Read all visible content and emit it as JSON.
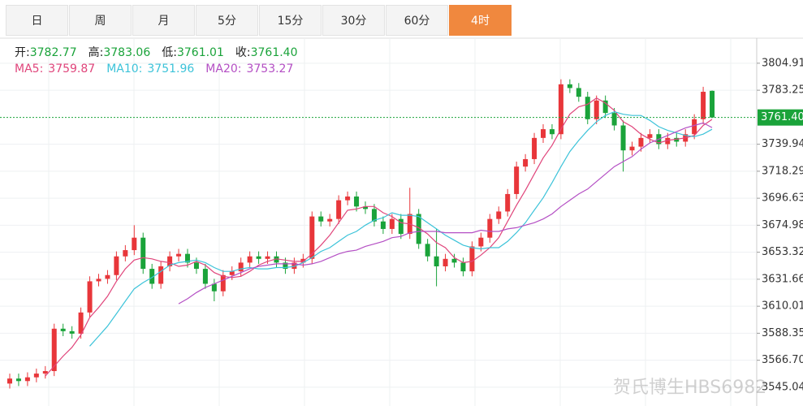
{
  "tabs": {
    "items": [
      "日",
      "周",
      "月",
      "5分",
      "15分",
      "30分",
      "60分",
      "4时"
    ],
    "active": 7
  },
  "header": {
    "ohlc": [
      {
        "label": "开:",
        "text": "3782.77"
      },
      {
        "label": "高:",
        "text": "3783.06"
      },
      {
        "label": "低:",
        "text": "3761.01"
      },
      {
        "label": "收:",
        "text": "3761.40"
      }
    ]
  },
  "watermark": "贺氏博生HBS6982",
  "chart_data": {
    "type": "candlestick",
    "up_color": "#e8363a",
    "down_color": "#1aa33a",
    "ylim": [
      3530,
      3825
    ],
    "yticks": [
      3804.91,
      3783.25,
      3739.94,
      3718.29,
      3696.63,
      3674.98,
      3653.32,
      3631.66,
      3610.01,
      3588.35,
      {
        "value": 3566.7,
        "label": "3566.70"
      },
      3545.04
    ],
    "grid": true,
    "last_price": {
      "value": 3761.4,
      "label": "3761.40",
      "color": "#1aa33a"
    },
    "open": [
      3548,
      3552,
      3550,
      3553,
      3556,
      3558,
      3592,
      3590,
      3588,
      3605,
      3630,
      3632,
      3635,
      3650,
      3655,
      3665,
      3640,
      3628,
      3642,
      3650,
      3652,
      3645,
      3640,
      3628,
      3622,
      3635,
      3638,
      3645,
      3650,
      3648,
      3650,
      3645,
      3640,
      3645,
      3648,
      3682,
      3678,
      3680,
      3695,
      3698,
      3690,
      3688,
      3678,
      3672,
      3680,
      3668,
      3684,
      3660,
      3650,
      3642,
      3648,
      3645,
      3638,
      3658,
      3665,
      3680,
      3686,
      3700,
      3722,
      3728,
      3745,
      3752,
      3748,
      3788,
      3785,
      3778,
      3760,
      3775,
      3765,
      3755,
      3735,
      3738,
      3745,
      3748,
      3740,
      3745,
      3742,
      3748,
      3760,
      3782.77
    ],
    "high": [
      3556,
      3556,
      3557,
      3560,
      3562,
      3596,
      3596,
      3594,
      3609,
      3634,
      3636,
      3639,
      3654,
      3659,
      3675,
      3669,
      3644,
      3646,
      3654,
      3656,
      3656,
      3649,
      3644,
      3632,
      3639,
      3642,
      3649,
      3654,
      3654,
      3654,
      3654,
      3649,
      3649,
      3652,
      3686,
      3686,
      3684,
      3699,
      3702,
      3702,
      3694,
      3692,
      3682,
      3684,
      3684,
      3705,
      3688,
      3664,
      3672,
      3652,
      3652,
      3649,
      3662,
      3669,
      3684,
      3690,
      3704,
      3726,
      3732,
      3749,
      3756,
      3756,
      3792,
      3792,
      3789,
      3782,
      3779,
      3779,
      3769,
      3759,
      3742,
      3749,
      3752,
      3752,
      3749,
      3749,
      3752,
      3764,
      3786,
      3783.06
    ],
    "low": [
      3544,
      3546,
      3546,
      3549,
      3552,
      3554,
      3586,
      3584,
      3584,
      3601,
      3626,
      3628,
      3631,
      3646,
      3651,
      3636,
      3624,
      3624,
      3638,
      3646,
      3641,
      3636,
      3624,
      3614,
      3618,
      3631,
      3634,
      3641,
      3644,
      3644,
      3641,
      3636,
      3636,
      3641,
      3644,
      3674,
      3674,
      3676,
      3691,
      3686,
      3684,
      3674,
      3668,
      3668,
      3664,
      3664,
      3656,
      3646,
      3626,
      3638,
      3641,
      3634,
      3634,
      3654,
      3661,
      3676,
      3682,
      3696,
      3718,
      3724,
      3741,
      3744,
      3744,
      3781,
      3774,
      3756,
      3756,
      3761,
      3751,
      3718,
      3731,
      3734,
      3741,
      3736,
      3736,
      3738,
      3738,
      3744,
      3756,
      3761.01
    ],
    "close": [
      3552,
      3550,
      3553,
      3556,
      3558,
      3592,
      3590,
      3588,
      3605,
      3630,
      3632,
      3635,
      3650,
      3655,
      3665,
      3640,
      3628,
      3642,
      3650,
      3652,
      3645,
      3640,
      3628,
      3622,
      3635,
      3638,
      3645,
      3650,
      3648,
      3650,
      3645,
      3640,
      3645,
      3648,
      3682,
      3678,
      3680,
      3695,
      3698,
      3690,
      3688,
      3678,
      3672,
      3680,
      3668,
      3684,
      3660,
      3650,
      3642,
      3648,
      3645,
      3638,
      3658,
      3665,
      3680,
      3686,
      3700,
      3722,
      3728,
      3745,
      3752,
      3748,
      3788,
      3785,
      3778,
      3760,
      3775,
      3765,
      3755,
      3735,
      3738,
      3745,
      3748,
      3740,
      3745,
      3742,
      3748,
      3760,
      3782,
      3761.4
    ],
    "series": [
      {
        "name": "MA5:",
        "last_label": "3759.87",
        "color": "#e0457b",
        "values": [
          null,
          null,
          null,
          null,
          3554,
          3562,
          3570,
          3577,
          3587,
          3601,
          3609,
          3618,
          3630,
          3640,
          3647,
          3649,
          3648,
          3646,
          3645,
          3642,
          3643,
          3646,
          3643,
          3637,
          3634,
          3633,
          3634,
          3638,
          3643,
          3646,
          3648,
          3647,
          3646,
          3646,
          3652,
          3659,
          3667,
          3677,
          3687,
          3688,
          3690,
          3690,
          3685,
          3682,
          3677,
          3676,
          3673,
          3668,
          3661,
          3657,
          3649,
          3645,
          3646,
          3651,
          3657,
          3665,
          3678,
          3691,
          3703,
          3716,
          3729,
          3739,
          3752,
          3764,
          3770,
          3772,
          3777,
          3773,
          3767,
          3758,
          3754,
          3748,
          3744,
          3741,
          3743,
          3744,
          3745,
          3747,
          3755,
          3759.87
        ]
      },
      {
        "name": "MA10:",
        "last_label": "3751.96",
        "color": "#3cc3d9",
        "values": [
          null,
          null,
          null,
          null,
          null,
          null,
          null,
          null,
          null,
          3578,
          3586,
          3594,
          3604,
          3614,
          3624,
          3629,
          3633,
          3638,
          3643,
          3645,
          3646,
          3647,
          3645,
          3641,
          3638,
          3638,
          3640,
          3641,
          3640,
          3640,
          3641,
          3641,
          3642,
          3645,
          3649,
          3654,
          3657,
          3662,
          3667,
          3670,
          3675,
          3679,
          3681,
          3685,
          3683,
          3683,
          3682,
          3677,
          3672,
          3667,
          3663,
          3659,
          3657,
          3656,
          3657,
          3657,
          3662,
          3669,
          3677,
          3687,
          3697,
          3709,
          3722,
          3734,
          3743,
          3751,
          3758,
          3763,
          3766,
          3764,
          3763,
          3763,
          3759,
          3754,
          3751,
          3749,
          3747,
          3746,
          3748,
          3751.96
        ]
      },
      {
        "name": "MA20:",
        "last_label": "3753.27",
        "color": "#b44fc4",
        "values": [
          null,
          null,
          null,
          null,
          null,
          null,
          null,
          null,
          null,
          null,
          null,
          null,
          null,
          null,
          null,
          null,
          null,
          null,
          null,
          3612,
          3616,
          3621,
          3625,
          3628,
          3631,
          3634,
          3637,
          3640,
          3642,
          3643,
          3644,
          3644,
          3644,
          3643,
          3644,
          3646,
          3649,
          3652,
          3654,
          3655,
          3658,
          3660,
          3662,
          3665,
          3666,
          3669,
          3670,
          3670,
          3670,
          3669,
          3669,
          3669,
          3669,
          3671,
          3670,
          3670,
          3672,
          3673,
          3675,
          3677,
          3680,
          3684,
          3690,
          3695,
          3700,
          3704,
          3710,
          3716,
          3722,
          3726,
          3730,
          3736,
          3741,
          3744,
          3747,
          3750,
          3753,
          3755,
          3757,
          3753.27
        ]
      }
    ]
  }
}
